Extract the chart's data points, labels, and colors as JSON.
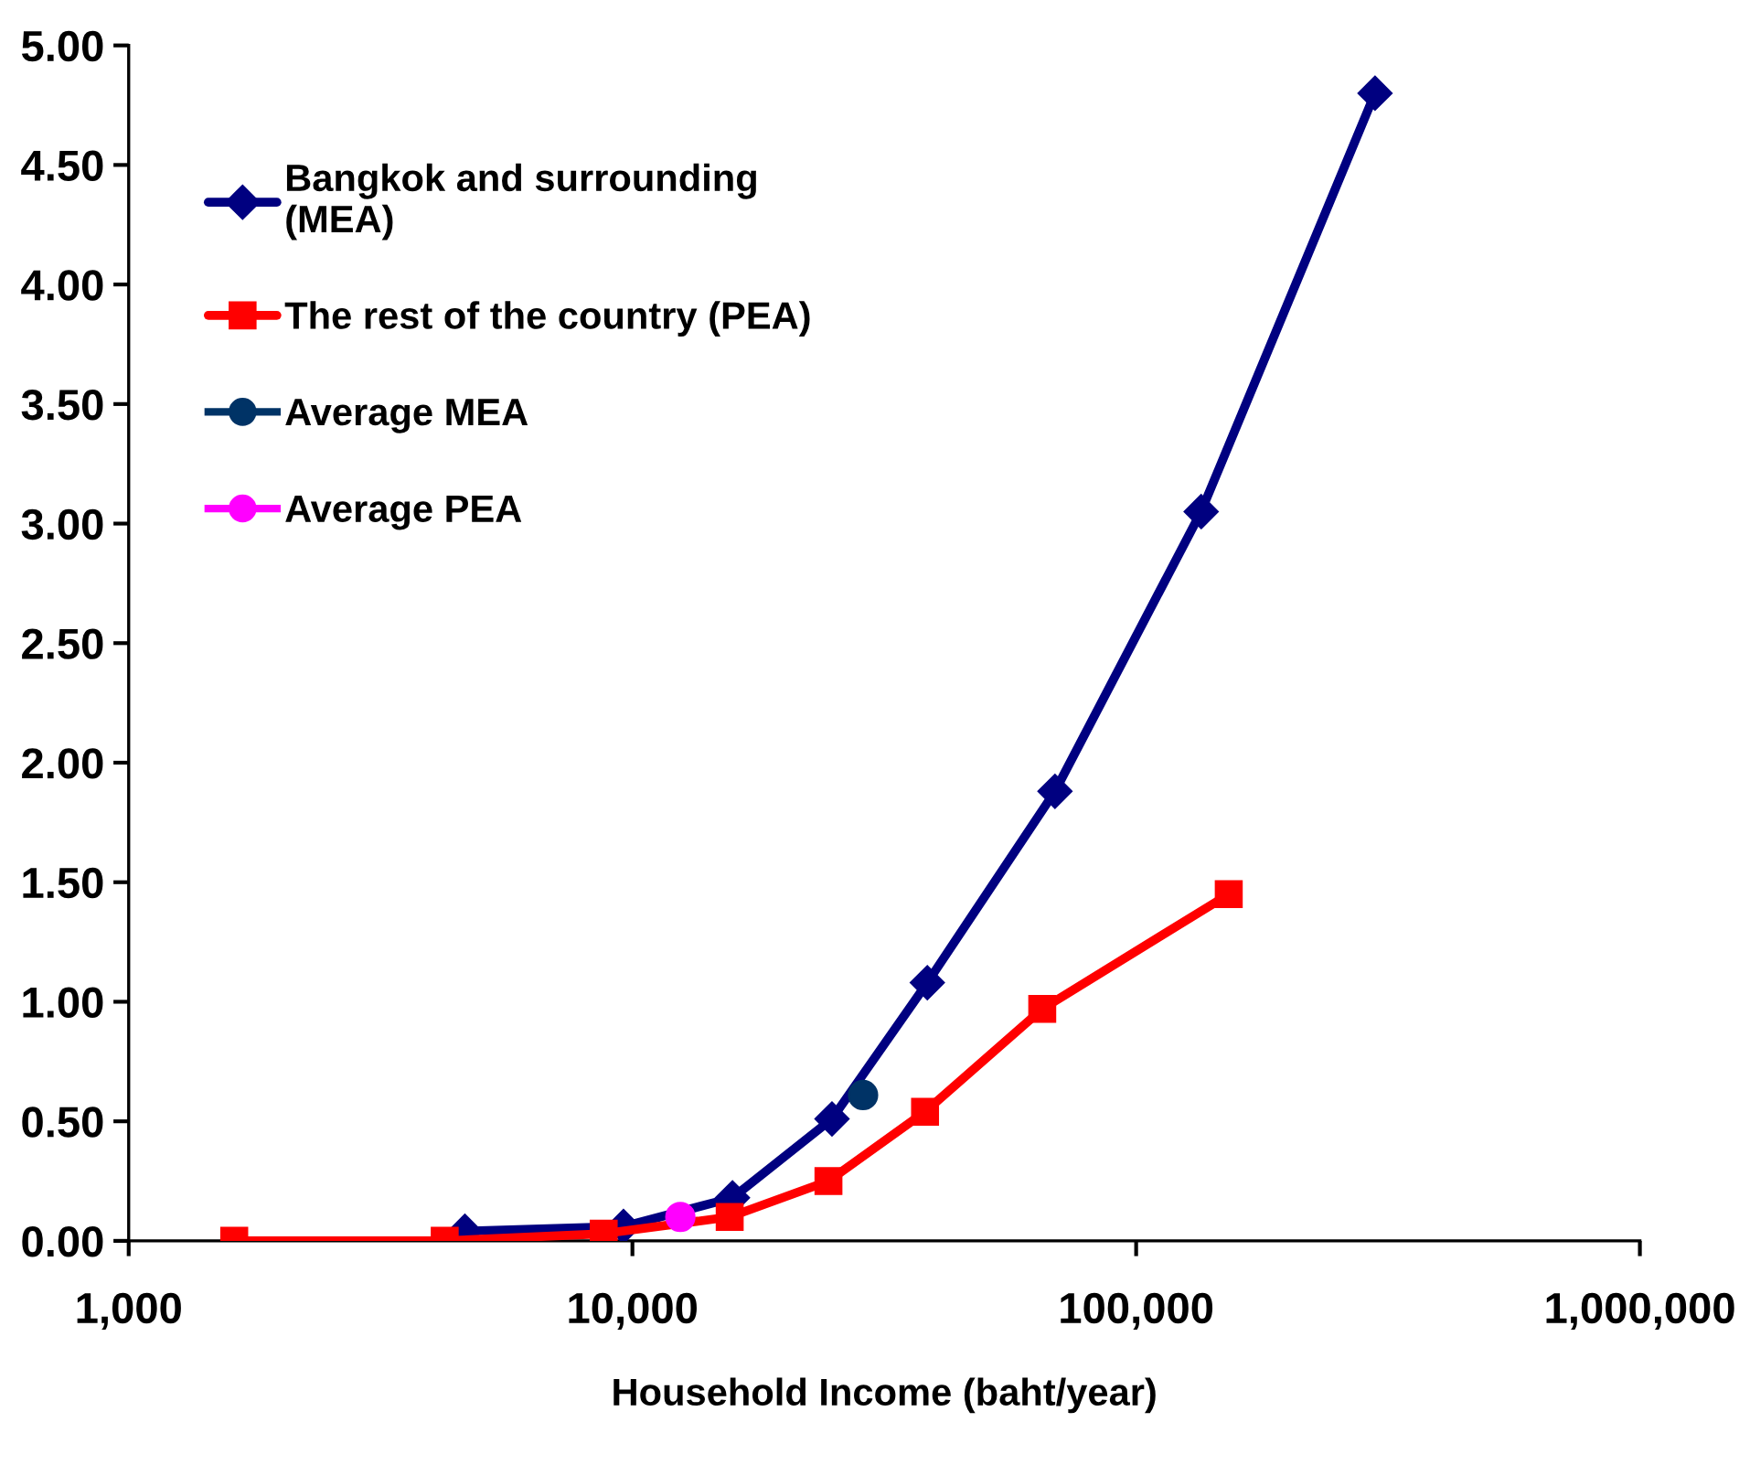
{
  "chart_data": {
    "type": "line",
    "xlabel": "Household Income (baht/year)",
    "log": "x",
    "xlim": [
      1000,
      1000000
    ],
    "xticks": [
      {
        "value": 1000,
        "label": "1,000"
      },
      {
        "value": 10000,
        "label": "10,000"
      },
      {
        "value": 100000,
        "label": "100,000"
      },
      {
        "value": 1000000,
        "label": "1,000,000"
      }
    ],
    "ylim": [
      0,
      5
    ],
    "yticks": [
      {
        "value": 0,
        "label": "0.00"
      },
      {
        "value": 0.5,
        "label": "0.50"
      },
      {
        "value": 1,
        "label": "1.00"
      },
      {
        "value": 1.5,
        "label": "1.50"
      },
      {
        "value": 2,
        "label": "2.00"
      },
      {
        "value": 2.5,
        "label": "2.50"
      },
      {
        "value": 3,
        "label": "3.00"
      },
      {
        "value": 3.5,
        "label": "3.50"
      },
      {
        "value": 4,
        "label": "4.00"
      },
      {
        "value": 4.5,
        "label": "4.50"
      },
      {
        "value": 5,
        "label": "5.00"
      }
    ],
    "grid": false,
    "legend": "top left",
    "line_style": "solid",
    "series": [
      {
        "name": "Bangkok and surrounding\n(MEA)",
        "color": "#000080",
        "marker": "diamond",
        "x": [
          4650,
          9600,
          15800,
          24900,
          38500,
          69000,
          134600,
          298000
        ],
        "values": [
          0.04,
          0.06,
          0.18,
          0.51,
          1.08,
          1.88,
          3.05,
          4.8
        ]
      },
      {
        "name": "The rest of the country (PEA)",
        "color": "#ff0000",
        "marker": "square",
        "x": [
          1620,
          4240,
          8770,
          15600,
          24500,
          38100,
          65100,
          152700
        ],
        "values": [
          0,
          0,
          0.03,
          0.1,
          0.25,
          0.54,
          0.97,
          1.45
        ]
      },
      {
        "name": "Average MEA",
        "type": "scatter",
        "color": "#003366",
        "marker": "circle",
        "x": [
          28700
        ],
        "values": [
          0.61
        ]
      },
      {
        "name": "Average PEA",
        "type": "scatter",
        "color": "#ff00ff",
        "marker": "circle",
        "x": [
          12450
        ],
        "values": [
          0.1
        ]
      }
    ]
  }
}
